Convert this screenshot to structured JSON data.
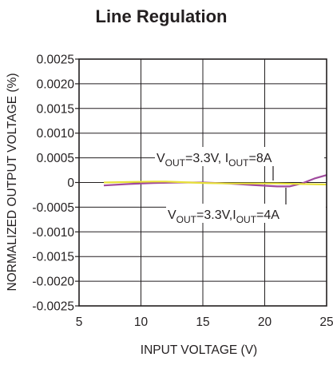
{
  "chart_data": {
    "type": "line",
    "title": "Line Regulation",
    "xlabel": "INPUT VOLTAGE (V)",
    "ylabel": "NORMALIZED OUTPUT VOLTAGE (%)",
    "xlim": [
      5,
      25
    ],
    "ylim": [
      -0.0025,
      0.0025
    ],
    "x_ticks": [
      "5",
      "10",
      "15",
      "20",
      "25"
    ],
    "y_ticks": [
      "0.0025",
      "0.0020",
      "0.0015",
      "0.0010",
      "0.0005",
      "0",
      "-0.0005",
      "-0.0010",
      "-0.0015",
      "-0.0020",
      "-0.0025"
    ],
    "grid": true,
    "series": [
      {
        "color": "#a04a9e",
        "x": [
          7,
          9,
          11,
          13,
          15,
          17,
          19,
          21,
          22,
          23,
          24,
          25
        ],
        "y": [
          -6e-05,
          -3e-05,
          -1e-05,
          0.0,
          0.0,
          -2e-05,
          -5e-05,
          -8e-05,
          -8e-05,
          -2e-05,
          8e-05,
          0.00015
        ]
      },
      {
        "color": "#e8e23a",
        "x": [
          7,
          9,
          11,
          12,
          13,
          15,
          17,
          19,
          21,
          23,
          25
        ],
        "y": [
          0.0,
          1e-05,
          2e-05,
          2e-05,
          1e-05,
          -1e-05,
          -2e-05,
          -2e-05,
          -2e-05,
          -3e-05,
          -4e-05
        ]
      }
    ],
    "annotations": [
      {
        "main1": "V",
        "sub1": "OUT",
        "main2": "=3.3V, I",
        "sub2": "OUT",
        "main3": "=8A"
      },
      {
        "main1": "V",
        "sub1": "OUT",
        "main2": "=3.3V,I",
        "sub2": "OUT",
        "main3": "=4A"
      }
    ]
  }
}
